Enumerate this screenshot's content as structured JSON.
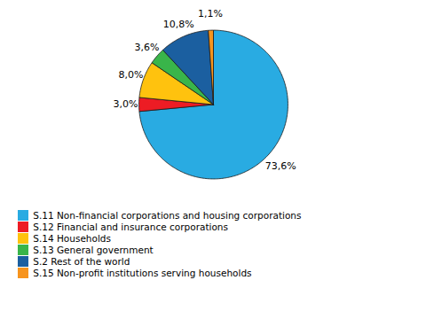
{
  "chart_data": {
    "type": "pie",
    "categories": [
      "S.11 Non-financial corporations and housing corporations",
      "S.12 Financial and insurance corporations",
      "S.14 Households",
      "S.13 General government",
      "S.2 Rest of the world",
      "S.15 Non-profit institutions serving households"
    ],
    "values": [
      73.6,
      3.0,
      8.0,
      3.6,
      10.8,
      1.1
    ],
    "value_labels": [
      "73,6%",
      "3,0%",
      "8,0%",
      "3,6%",
      "10,8%",
      "1,1%"
    ],
    "colors": [
      "#29ABE2",
      "#ED1C24",
      "#FFC20E",
      "#39B54A",
      "#1B5FA0",
      "#F7941D"
    ],
    "data_labels": true,
    "legend": "bottom"
  }
}
